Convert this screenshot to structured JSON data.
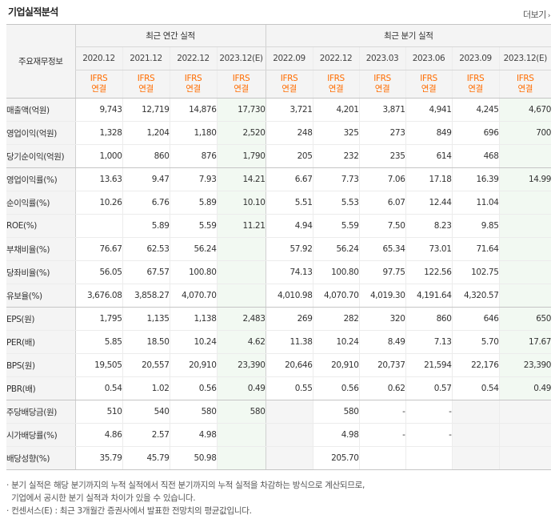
{
  "title": "기업실적분석",
  "more_label": "더보기",
  "header": {
    "label": "주요재무정보",
    "annual_group": "최근 연간 실적",
    "quarter_group": "최근 분기 실적",
    "periods": [
      "2020.12",
      "2021.12",
      "2022.12",
      "2023.12(E)",
      "2022.09",
      "2022.12",
      "2023.03",
      "2023.06",
      "2023.09",
      "2023.12(E)"
    ],
    "standard": "IFRS",
    "basis": "연결"
  },
  "rows": [
    {
      "label": "매출액(억원)",
      "values": [
        "9,743",
        "12,719",
        "14,876",
        "17,730",
        "3,721",
        "4,201",
        "3,871",
        "4,941",
        "4,245",
        "4,670"
      ]
    },
    {
      "label": "영업이익(억원)",
      "values": [
        "1,328",
        "1,204",
        "1,180",
        "2,520",
        "248",
        "325",
        "273",
        "849",
        "696",
        "700"
      ]
    },
    {
      "label": "당기순이익(억원)",
      "values": [
        "1,000",
        "860",
        "876",
        "1,790",
        "205",
        "232",
        "235",
        "614",
        "468",
        ""
      ]
    },
    {
      "label": "영업이익률(%)",
      "values": [
        "13.63",
        "9.47",
        "7.93",
        "14.21",
        "6.67",
        "7.73",
        "7.06",
        "17.18",
        "16.39",
        "14.99"
      ]
    },
    {
      "label": "순이익률(%)",
      "values": [
        "10.26",
        "6.76",
        "5.89",
        "10.10",
        "5.51",
        "5.53",
        "6.07",
        "12.44",
        "11.04",
        ""
      ]
    },
    {
      "label": "ROE(%)",
      "values": [
        "",
        "5.89",
        "5.59",
        "11.21",
        "4.94",
        "5.59",
        "7.50",
        "8.23",
        "9.85",
        ""
      ]
    },
    {
      "label": "부채비율(%)",
      "values": [
        "76.67",
        "62.53",
        "56.24",
        "",
        "57.92",
        "56.24",
        "65.34",
        "73.01",
        "71.64",
        ""
      ]
    },
    {
      "label": "당좌비율(%)",
      "values": [
        "56.05",
        "67.57",
        "100.80",
        "",
        "74.13",
        "100.80",
        "97.75",
        "122.56",
        "102.75",
        ""
      ]
    },
    {
      "label": "유보율(%)",
      "values": [
        "3,676.08",
        "3,858.27",
        "4,070.70",
        "",
        "4,010.98",
        "4,070.70",
        "4,019.30",
        "4,191.64",
        "4,320.57",
        ""
      ]
    },
    {
      "label": "EPS(원)",
      "values": [
        "1,795",
        "1,135",
        "1,138",
        "2,483",
        "269",
        "282",
        "320",
        "860",
        "646",
        "650"
      ]
    },
    {
      "label": "PER(배)",
      "values": [
        "5.85",
        "18.50",
        "10.24",
        "4.62",
        "11.38",
        "10.24",
        "8.49",
        "7.13",
        "5.70",
        "17.67"
      ]
    },
    {
      "label": "BPS(원)",
      "values": [
        "19,505",
        "20,557",
        "20,910",
        "23,390",
        "20,646",
        "20,910",
        "20,737",
        "21,594",
        "22,176",
        "23,390"
      ]
    },
    {
      "label": "PBR(배)",
      "values": [
        "0.54",
        "1.02",
        "0.56",
        "0.49",
        "0.55",
        "0.56",
        "0.62",
        "0.57",
        "0.54",
        "0.49"
      ]
    },
    {
      "label": "주당배당금(원)",
      "values": [
        "510",
        "540",
        "580",
        "580",
        "",
        "580",
        "-",
        "-",
        "",
        ""
      ]
    },
    {
      "label": "시가배당률(%)",
      "values": [
        "4.86",
        "2.57",
        "4.98",
        "",
        "",
        "4.98",
        "-",
        "-",
        "",
        ""
      ]
    },
    {
      "label": "배당성향(%)",
      "values": [
        "35.79",
        "45.79",
        "50.98",
        "",
        "",
        "205.70",
        "",
        "",
        "",
        ""
      ]
    }
  ],
  "notes": [
    "· 분기 실적은 해당 분기까지의 누적 실적에서 직전 분기까지의 누적 실적을 차감하는 방식으로 계산되므로,",
    "  기업에서 공시한 분기 실적과 차이가 있을 수 있습니다.",
    "· 컨센서스(E) : 최근 3개월간 증권사에서 발표한 전망치의 평균값입니다."
  ],
  "colors": {
    "orange": "#ff6d00",
    "estimate_bg": "#f2f9f2",
    "header_bg": "#f4f4f4",
    "gray_cell": "#f5f5f5"
  }
}
